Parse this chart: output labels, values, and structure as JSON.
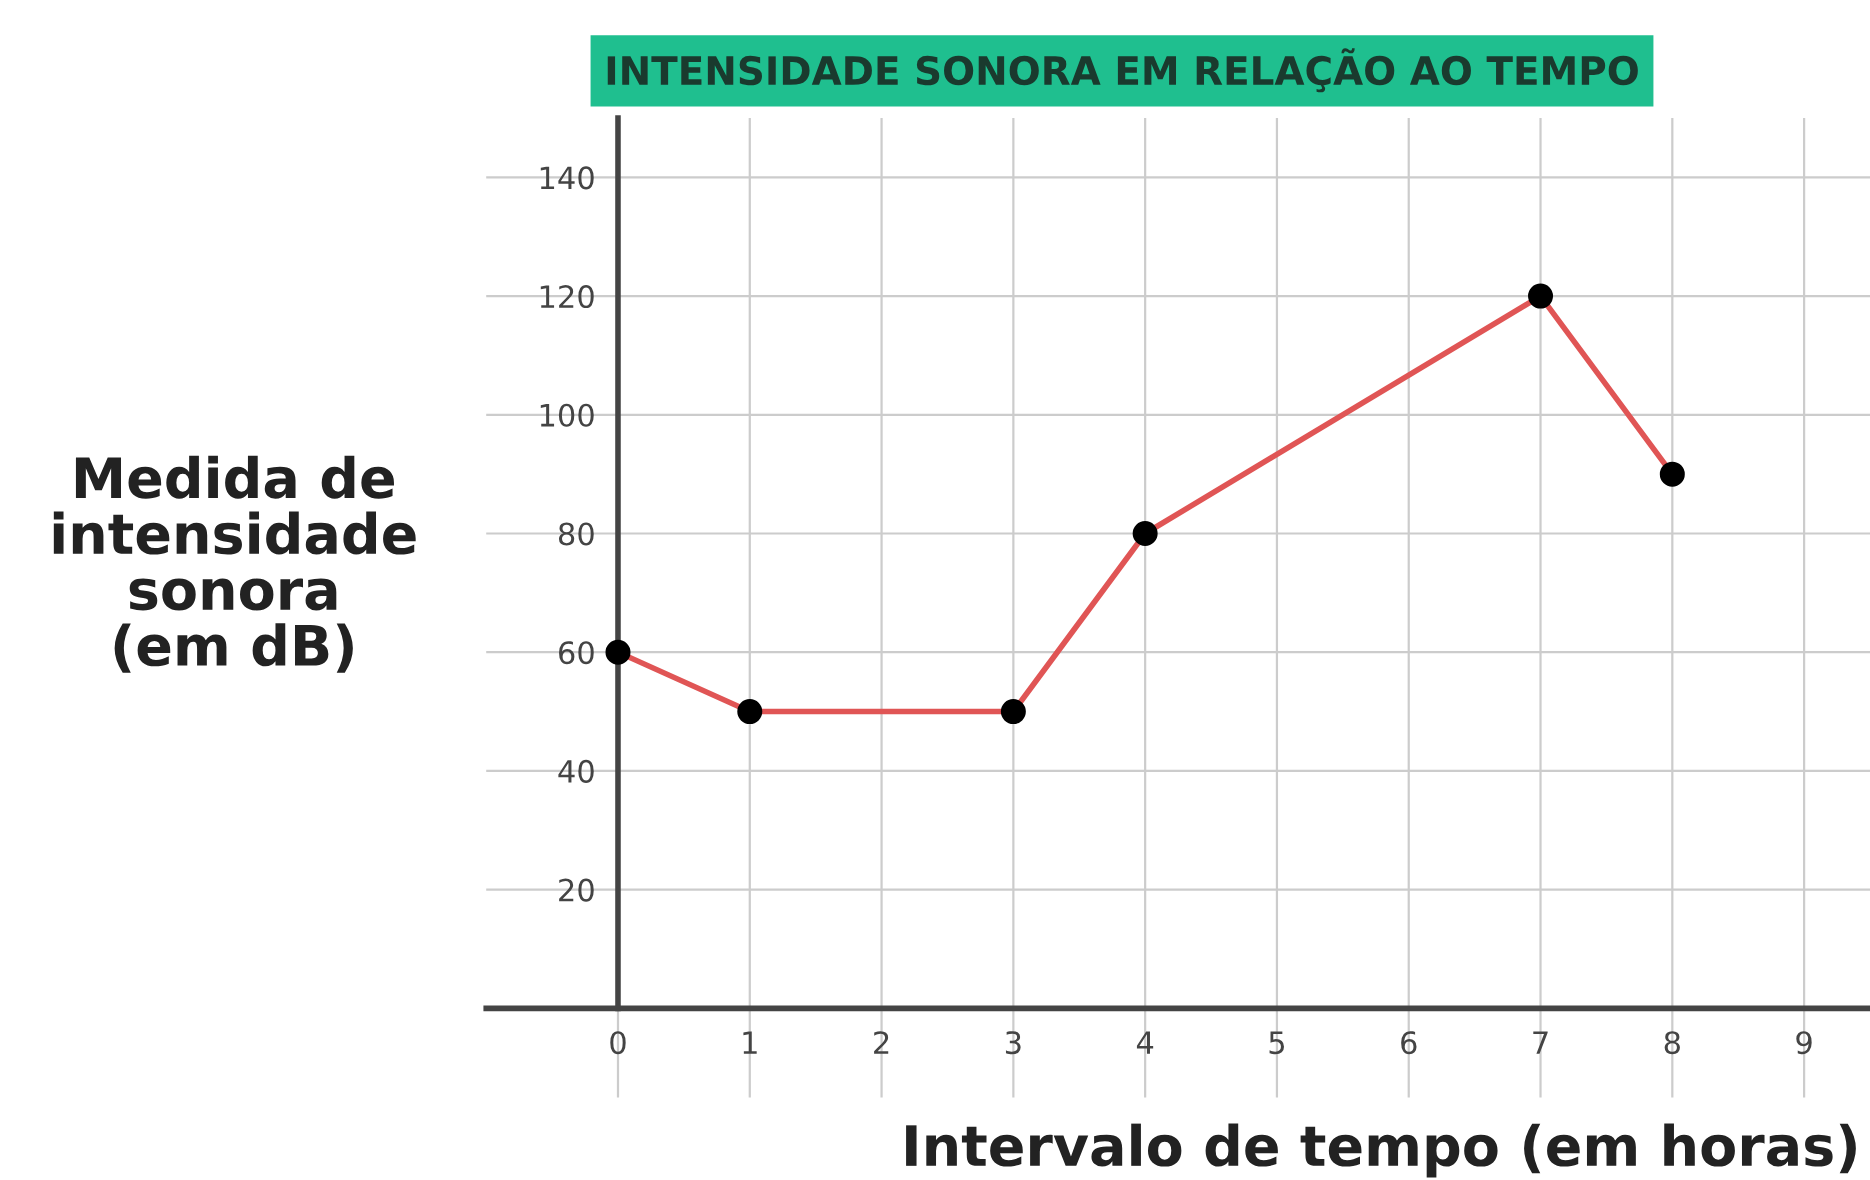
{
  "chart_data": {
    "type": "line",
    "title": "INTENSIDADE SONORA EM RELAÇÃO AO TEMPO",
    "xlabel": "Intervalo de tempo (em horas)",
    "ylabel": "Medida de\nintensidade\nsonora\n(em dB)",
    "x": [
      0,
      1,
      3,
      4,
      7,
      8
    ],
    "series": [
      {
        "color": "#e05555",
        "values": [
          60,
          50,
          50,
          80,
          120,
          90
        ]
      }
    ],
    "xlim": [
      -1,
      9.5
    ],
    "ylim": [
      -15,
      150
    ],
    "xticks": [
      0,
      1,
      2,
      3,
      4,
      5,
      6,
      7,
      8,
      9
    ],
    "yticks": [
      20,
      40,
      60,
      80,
      100,
      120,
      140
    ],
    "grid": true,
    "marker": "circle",
    "line_style": "solid"
  }
}
